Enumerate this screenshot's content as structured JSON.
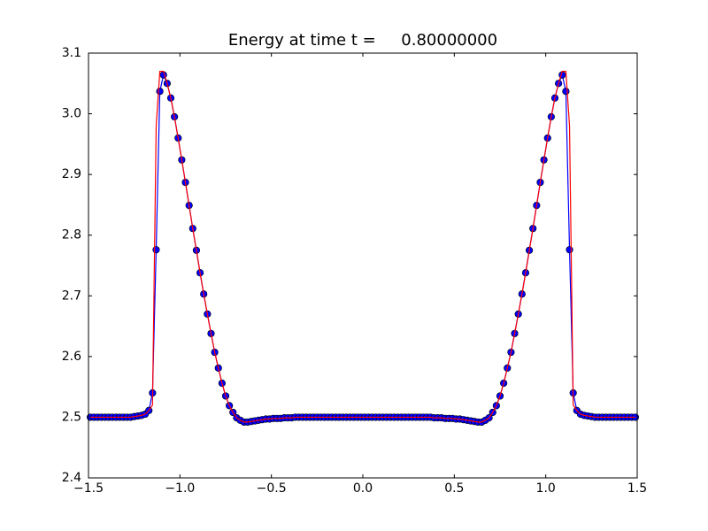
{
  "chart_data": {
    "type": "line",
    "title": "Energy at time t =     0.80000000",
    "x": [
      -1.49,
      -1.47,
      -1.45,
      -1.43,
      -1.41,
      -1.39,
      -1.37,
      -1.35,
      -1.33,
      -1.31,
      -1.29,
      -1.27,
      -1.25,
      -1.23,
      -1.21,
      -1.19,
      -1.17,
      -1.15,
      -1.13,
      -1.11,
      -1.09,
      -1.07,
      -1.05,
      -1.03,
      -1.01,
      -0.99,
      -0.97,
      -0.95,
      -0.93,
      -0.91,
      -0.89,
      -0.87,
      -0.85,
      -0.83,
      -0.81,
      -0.79,
      -0.77,
      -0.75,
      -0.73,
      -0.71,
      -0.69,
      -0.67,
      -0.65,
      -0.63,
      -0.61,
      -0.59,
      -0.57,
      -0.55,
      -0.53,
      -0.51,
      -0.49,
      -0.47,
      -0.45,
      -0.43,
      -0.41,
      -0.39,
      -0.37,
      -0.35,
      -0.33,
      -0.31,
      -0.29,
      -0.27,
      -0.25,
      -0.23,
      -0.21,
      -0.19,
      -0.17,
      -0.15,
      -0.13,
      -0.11,
      -0.09,
      -0.07,
      -0.05,
      -0.03,
      -0.01,
      0.01,
      0.03,
      0.05,
      0.07,
      0.09,
      0.11,
      0.13,
      0.15,
      0.17,
      0.19,
      0.21,
      0.23,
      0.25,
      0.27,
      0.29,
      0.31,
      0.33,
      0.35,
      0.37,
      0.39,
      0.41,
      0.43,
      0.45,
      0.47,
      0.49,
      0.51,
      0.53,
      0.55,
      0.57,
      0.59,
      0.61,
      0.63,
      0.65,
      0.67,
      0.69,
      0.71,
      0.73,
      0.75,
      0.77,
      0.79,
      0.81,
      0.83,
      0.85,
      0.87,
      0.89,
      0.91,
      0.93,
      0.95,
      0.97,
      0.99,
      1.01,
      1.03,
      1.05,
      1.07,
      1.09,
      1.11,
      1.13,
      1.15,
      1.17,
      1.19,
      1.21,
      1.23,
      1.25,
      1.27,
      1.29,
      1.31,
      1.33,
      1.35,
      1.37,
      1.39,
      1.41,
      1.43,
      1.45,
      1.47,
      1.49
    ],
    "series": [
      {
        "color": "#0000ff",
        "markers": true,
        "values": [
          2.5,
          2.5,
          2.5,
          2.5,
          2.5,
          2.5,
          2.5,
          2.5,
          2.5,
          2.5,
          2.5,
          2.5,
          2.501,
          2.502,
          2.503,
          2.505,
          2.511,
          2.54,
          2.776,
          3.037,
          3.064,
          3.05,
          3.026,
          2.995,
          2.96,
          2.924,
          2.887,
          2.849,
          2.811,
          2.775,
          2.738,
          2.703,
          2.67,
          2.638,
          2.607,
          2.581,
          2.556,
          2.535,
          2.519,
          2.508,
          2.499,
          2.495,
          2.492,
          2.492,
          2.493,
          2.494,
          2.495,
          2.496,
          2.497,
          2.497,
          2.498,
          2.498,
          2.498,
          2.499,
          2.499,
          2.499,
          2.5,
          2.5,
          2.5,
          2.5,
          2.5,
          2.5,
          2.5,
          2.5,
          2.5,
          2.5,
          2.5,
          2.5,
          2.5,
          2.5,
          2.5,
          2.5,
          2.5,
          2.5,
          2.5,
          2.5,
          2.5,
          2.5,
          2.5,
          2.5,
          2.5,
          2.5,
          2.5,
          2.5,
          2.5,
          2.5,
          2.5,
          2.5,
          2.5,
          2.5,
          2.5,
          2.5,
          2.5,
          2.5,
          2.499,
          2.499,
          2.499,
          2.498,
          2.498,
          2.498,
          2.497,
          2.497,
          2.496,
          2.495,
          2.494,
          2.493,
          2.492,
          2.492,
          2.495,
          2.499,
          2.508,
          2.519,
          2.535,
          2.556,
          2.581,
          2.607,
          2.638,
          2.67,
          2.703,
          2.738,
          2.775,
          2.811,
          2.849,
          2.887,
          2.924,
          2.96,
          2.995,
          3.026,
          3.05,
          3.064,
          3.037,
          2.776,
          2.54,
          2.511,
          2.505,
          2.503,
          2.502,
          2.501,
          2.5,
          2.5,
          2.5,
          2.5,
          2.5,
          2.5,
          2.5,
          2.5,
          2.5,
          2.5,
          2.5,
          2.5
        ]
      },
      {
        "color": "#ff0000",
        "markers": false,
        "values": [
          2.5,
          2.5,
          2.5,
          2.5,
          2.5,
          2.5,
          2.5,
          2.5,
          2.5,
          2.5,
          2.5,
          2.5,
          2.501,
          2.502,
          2.503,
          2.505,
          2.511,
          2.52,
          2.98,
          3.07,
          3.07,
          3.05,
          3.026,
          2.995,
          2.96,
          2.924,
          2.887,
          2.849,
          2.811,
          2.775,
          2.738,
          2.703,
          2.67,
          2.638,
          2.607,
          2.581,
          2.556,
          2.535,
          2.519,
          2.508,
          2.499,
          2.495,
          2.492,
          2.492,
          2.493,
          2.494,
          2.495,
          2.496,
          2.497,
          2.497,
          2.498,
          2.498,
          2.498,
          2.499,
          2.499,
          2.499,
          2.5,
          2.5,
          2.5,
          2.5,
          2.5,
          2.5,
          2.5,
          2.5,
          2.5,
          2.5,
          2.5,
          2.5,
          2.5,
          2.5,
          2.5,
          2.5,
          2.5,
          2.5,
          2.5,
          2.5,
          2.5,
          2.5,
          2.5,
          2.5,
          2.5,
          2.5,
          2.5,
          2.5,
          2.5,
          2.5,
          2.5,
          2.5,
          2.5,
          2.5,
          2.5,
          2.5,
          2.5,
          2.5,
          2.499,
          2.499,
          2.499,
          2.498,
          2.498,
          2.498,
          2.497,
          2.497,
          2.496,
          2.495,
          2.494,
          2.493,
          2.492,
          2.492,
          2.495,
          2.499,
          2.508,
          2.519,
          2.535,
          2.556,
          2.581,
          2.607,
          2.638,
          2.67,
          2.703,
          2.738,
          2.775,
          2.811,
          2.849,
          2.887,
          2.924,
          2.96,
          2.995,
          3.026,
          3.05,
          3.07,
          3.07,
          2.98,
          2.52,
          2.511,
          2.505,
          2.503,
          2.502,
          2.501,
          2.5,
          2.5,
          2.5,
          2.5,
          2.5,
          2.5,
          2.5,
          2.5,
          2.5,
          2.5,
          2.5,
          2.5
        ]
      }
    ],
    "xlim": [
      -1.5,
      1.5
    ],
    "xticks": [
      {
        "value": -1.5,
        "label": "−1.5"
      },
      {
        "value": -1.0,
        "label": "−1.0"
      },
      {
        "value": -0.5,
        "label": "−0.5"
      },
      {
        "value": 0.0,
        "label": "0.0"
      },
      0.5,
      {
        "value": 1.0,
        "label": "1.0"
      },
      1.5
    ],
    "ylim": [
      2.4,
      3.1
    ],
    "yticks": [
      2.4,
      2.5,
      2.6,
      2.7,
      2.8,
      2.9,
      {
        "value": 3.0,
        "label": "3.0"
      },
      3.1
    ],
    "grid": false
  }
}
